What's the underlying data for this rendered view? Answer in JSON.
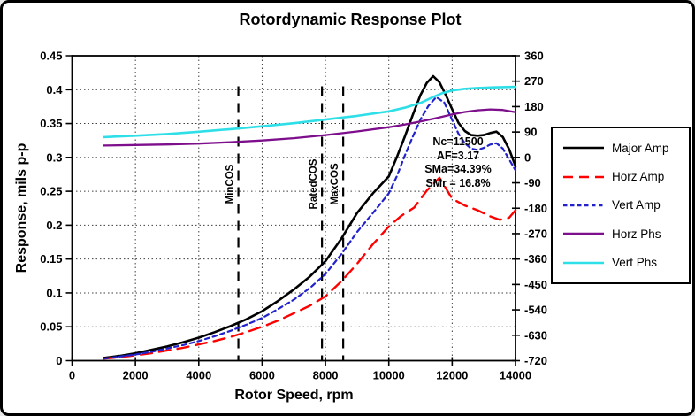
{
  "window": {
    "title": "Rotordynamic Response Plot"
  },
  "chart_data": {
    "type": "line",
    "title": "Rotordynamic Response Plot",
    "xlabel": "Rotor Speed, rpm",
    "ylabel_left": "Response, mils p-p",
    "xlim": [
      0,
      14000
    ],
    "ylim_left": [
      0,
      0.45
    ],
    "ylim_right": [
      -720,
      360
    ],
    "x_ticks": [
      "0",
      "2000",
      "4000",
      "6000",
      "8000",
      "10000",
      "12000",
      "14000"
    ],
    "y_ticks_left": [
      "0",
      "0.05",
      "0.1",
      "0.15",
      "0.2",
      "0.25",
      "0.3",
      "0.35",
      "0.4",
      "0.45"
    ],
    "y_ticks_right": [
      "360",
      "270",
      "180",
      "90",
      "0",
      "-90",
      "-180",
      "-270",
      "-360",
      "-450",
      "-540",
      "-630",
      "-720"
    ],
    "grid": true,
    "legend_position": "right",
    "series": [
      {
        "name": "Major Amp",
        "axis": "left",
        "color": "#000000",
        "style": "solid",
        "width": 2.6,
        "x": [
          1000,
          1500,
          2000,
          2500,
          3000,
          3500,
          4000,
          4500,
          5000,
          5500,
          6000,
          6500,
          7000,
          7500,
          8000,
          8500,
          9000,
          9500,
          10000,
          10250,
          10500,
          10750,
          11000,
          11200,
          11400,
          11600,
          11800,
          12000,
          12200,
          12400,
          12600,
          12800,
          13000,
          13200,
          13400,
          13600,
          13800,
          14000
        ],
        "y": [
          0.004,
          0.007,
          0.011,
          0.016,
          0.021,
          0.027,
          0.034,
          0.042,
          0.051,
          0.061,
          0.073,
          0.088,
          0.105,
          0.124,
          0.147,
          0.18,
          0.218,
          0.247,
          0.272,
          0.3,
          0.33,
          0.362,
          0.392,
          0.41,
          0.42,
          0.411,
          0.392,
          0.371,
          0.351,
          0.339,
          0.333,
          0.332,
          0.333,
          0.336,
          0.338,
          0.33,
          0.312,
          0.287
        ]
      },
      {
        "name": "Horz Amp",
        "axis": "left",
        "color": "#FF0000",
        "style": "long-dash",
        "width": 2.4,
        "x": [
          1000,
          1500,
          2000,
          2500,
          3000,
          3500,
          4000,
          4500,
          5000,
          5500,
          6000,
          6500,
          7000,
          7500,
          8000,
          8500,
          9000,
          9500,
          10000,
          10400,
          10800,
          11200,
          11600,
          12000,
          12400,
          12800,
          13200,
          13500,
          13800,
          14000
        ],
        "y": [
          0.003,
          0.005,
          0.008,
          0.011,
          0.015,
          0.019,
          0.024,
          0.029,
          0.035,
          0.042,
          0.05,
          0.059,
          0.07,
          0.081,
          0.095,
          0.117,
          0.143,
          0.172,
          0.198,
          0.214,
          0.226,
          0.251,
          0.27,
          0.239,
          0.229,
          0.222,
          0.213,
          0.208,
          0.211,
          0.222
        ]
      },
      {
        "name": "Vert Amp",
        "axis": "left",
        "color": "#2222CC",
        "style": "short-dash",
        "width": 2.2,
        "x": [
          1000,
          1500,
          2000,
          2500,
          3000,
          3500,
          4000,
          4500,
          5000,
          5500,
          6000,
          6500,
          7000,
          7500,
          8000,
          8500,
          9000,
          9500,
          10000,
          10250,
          10500,
          10750,
          11000,
          11250,
          11500,
          11750,
          12000,
          12200,
          12400,
          12600,
          12800,
          13000,
          13200,
          13400,
          13600,
          13800,
          14000
        ],
        "y": [
          0.003,
          0.006,
          0.009,
          0.013,
          0.018,
          0.023,
          0.029,
          0.036,
          0.044,
          0.053,
          0.063,
          0.076,
          0.09,
          0.107,
          0.128,
          0.157,
          0.19,
          0.218,
          0.247,
          0.272,
          0.302,
          0.33,
          0.356,
          0.376,
          0.389,
          0.381,
          0.355,
          0.335,
          0.321,
          0.313,
          0.311,
          0.314,
          0.319,
          0.321,
          0.313,
          0.297,
          0.281
        ]
      },
      {
        "name": "Horz Phs",
        "axis": "right",
        "color": "#7D0E8C",
        "style": "solid",
        "width": 2.3,
        "x": [
          1000,
          2000,
          3000,
          4000,
          5000,
          6000,
          7000,
          8000,
          9000,
          10000,
          10500,
          11000,
          11500,
          12000,
          12400,
          12800,
          13200,
          13600,
          14000
        ],
        "y": [
          42,
          44,
          46,
          49,
          54,
          60,
          68,
          79,
          92,
          107,
          116,
          127,
          139,
          152,
          161,
          167,
          170,
          168,
          160
        ]
      },
      {
        "name": "Vert Phs",
        "axis": "right",
        "color": "#2FDFE8",
        "style": "solid",
        "width": 2.6,
        "x": [
          1000,
          2000,
          3000,
          4000,
          5000,
          6000,
          7000,
          8000,
          9000,
          10000,
          10500,
          11000,
          11400,
          11700,
          12000,
          12400,
          12800,
          13300,
          14000
        ],
        "y": [
          72,
          77,
          83,
          91,
          100,
          110,
          121,
          134,
          147,
          163,
          176,
          193,
          214,
          228,
          237,
          243,
          246,
          248,
          250
        ]
      }
    ],
    "reference_lines": [
      {
        "label": "MinCOS",
        "x": 5250
      },
      {
        "label": "RatedCOS",
        "x": 7890
      },
      {
        "label": "MaxCOS",
        "x": 8560
      }
    ],
    "annotation": {
      "lines": [
        "Nc=11500",
        "AF=3.17",
        "SMa=34.39%",
        "SMr = 16.8%"
      ]
    }
  }
}
